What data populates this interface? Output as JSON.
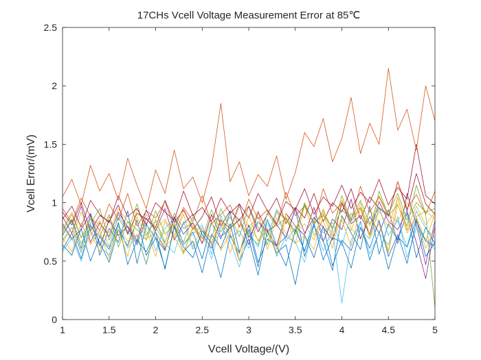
{
  "chart_data": {
    "type": "line",
    "title": "17CHs Vcell Voltage Measurement Error at 85℃",
    "xlabel": "Vcell Voltage/(V)",
    "ylabel": "Vcell Error/(mV)",
    "xlim": [
      1,
      5
    ],
    "ylim": [
      0,
      2.5
    ],
    "xticks": [
      "1",
      "1.5",
      "2",
      "2.5",
      "3",
      "3.5",
      "4",
      "4.5",
      "5"
    ],
    "yticks": [
      "0",
      "0.5",
      "1",
      "1.5",
      "2",
      "2.5"
    ],
    "grid": false,
    "legend": "none",
    "x": [
      1.0,
      1.1,
      1.2,
      1.3,
      1.4,
      1.5,
      1.6,
      1.7,
      1.8,
      1.9,
      2.0,
      2.1,
      2.2,
      2.3,
      2.4,
      2.5,
      2.6,
      2.7,
      2.8,
      2.9,
      3.0,
      3.1,
      3.2,
      3.3,
      3.4,
      3.5,
      3.6,
      3.7,
      3.8,
      3.9,
      4.0,
      4.1,
      4.2,
      4.3,
      4.4,
      4.5,
      4.6,
      4.7,
      4.8,
      4.9,
      5.0
    ],
    "colors": [
      "#0072BD",
      "#D95319",
      "#EDB120",
      "#7E2F8E",
      "#77AC30",
      "#4DBEEE",
      "#A2142F"
    ],
    "series": [
      {
        "values": [
          0.72,
          0.85,
          0.61,
          0.9,
          0.55,
          0.78,
          0.66,
          0.93,
          0.48,
          0.81,
          0.7,
          0.59,
          0.88,
          0.64,
          0.75,
          0.52,
          0.83,
          0.69,
          0.92,
          0.58,
          0.77,
          0.45,
          0.86,
          0.63,
          0.71,
          0.95,
          0.54,
          0.8,
          0.67,
          0.42,
          0.89,
          0.74,
          0.6,
          0.97,
          0.56,
          0.82,
          0.68,
          0.91,
          0.53,
          0.79,
          0.65
        ]
      },
      {
        "values": [
          0.78,
          0.92,
          0.7,
          0.87,
          0.81,
          0.74,
          0.95,
          0.84,
          0.68,
          0.9,
          0.77,
          0.86,
          0.72,
          0.93,
          0.8,
          0.65,
          0.89,
          0.83,
          0.75,
          0.97,
          0.79,
          0.88,
          0.71,
          0.94,
          0.85,
          0.76,
          0.99,
          0.82,
          0.91,
          0.78,
          1.02,
          0.87,
          0.96,
          0.8,
          1.06,
          0.9,
          0.84,
          1.0,
          0.88,
          0.93,
          0.86
        ]
      },
      {
        "values": [
          0.8,
          0.68,
          0.92,
          0.75,
          0.58,
          0.88,
          0.71,
          0.63,
          0.95,
          0.77,
          0.54,
          0.84,
          0.7,
          0.9,
          0.62,
          0.79,
          0.66,
          0.86,
          0.57,
          0.81,
          0.73,
          0.93,
          0.6,
          0.87,
          0.74,
          0.65,
          0.98,
          0.72,
          0.85,
          0.61,
          1.02,
          0.78,
          0.69,
          0.94,
          0.83,
          0.59,
          1.05,
          0.76,
          0.88,
          0.67,
          0.91
        ]
      },
      {
        "values": [
          0.88,
          0.74,
          0.97,
          0.66,
          0.83,
          0.71,
          0.92,
          0.79,
          0.64,
          0.87,
          0.76,
          0.95,
          0.68,
          0.82,
          0.9,
          0.73,
          0.61,
          0.85,
          0.78,
          0.99,
          0.7,
          0.84,
          0.75,
          0.63,
          0.91,
          0.8,
          0.72,
          0.96,
          0.67,
          0.86,
          0.77,
          1.03,
          0.69,
          0.88,
          0.74,
          0.94,
          0.65,
          1.08,
          0.81,
          0.47,
          0.85
        ]
      },
      {
        "values": [
          0.76,
          0.9,
          0.7,
          0.82,
          0.95,
          0.68,
          0.87,
          0.74,
          0.99,
          0.72,
          0.85,
          0.66,
          0.91,
          0.78,
          0.83,
          0.69,
          0.94,
          0.75,
          0.88,
          0.71,
          0.97,
          0.79,
          0.64,
          0.92,
          0.86,
          0.73,
          1.0,
          0.81,
          0.93,
          0.77,
          1.06,
          0.84,
          0.96,
          0.72,
          1.1,
          0.89,
          0.98,
          0.8,
          1.15,
          0.9,
          0.1
        ]
      },
      {
        "values": [
          0.68,
          0.79,
          0.57,
          0.86,
          0.72,
          0.62,
          0.9,
          0.75,
          0.66,
          0.83,
          0.59,
          0.78,
          0.87,
          0.64,
          0.73,
          0.81,
          0.56,
          0.89,
          0.7,
          0.76,
          0.61,
          0.84,
          0.71,
          0.94,
          0.67,
          0.79,
          0.58,
          0.88,
          0.74,
          0.83,
          0.63,
          0.91,
          0.77,
          0.69,
          0.96,
          0.72,
          0.85,
          0.62,
          0.93,
          0.78,
          0.7
        ]
      },
      {
        "values": [
          0.92,
          0.81,
          1.0,
          0.76,
          0.89,
          0.84,
          0.98,
          0.73,
          0.91,
          0.86,
          0.79,
          1.02,
          0.83,
          0.94,
          0.77,
          0.88,
          1.05,
          0.8,
          0.93,
          0.85,
          0.97,
          0.75,
          0.9,
          1.04,
          0.82,
          0.96,
          0.87,
          1.08,
          0.84,
          1.0,
          0.92,
          1.12,
          0.86,
          1.05,
          0.95,
          0.89,
          1.18,
          0.93,
          1.25,
          0.99,
          0.9
        ]
      },
      {
        "values": [
          0.6,
          0.74,
          0.52,
          0.81,
          0.66,
          0.49,
          0.77,
          0.63,
          0.85,
          0.55,
          0.7,
          0.44,
          0.79,
          0.58,
          0.67,
          0.4,
          0.73,
          0.61,
          0.82,
          0.5,
          0.69,
          0.38,
          0.76,
          0.57,
          0.64,
          0.3,
          0.72,
          0.53,
          0.8,
          0.46,
          0.68,
          0.59,
          0.84,
          0.51,
          0.75,
          0.43,
          0.71,
          0.62,
          0.86,
          0.54,
          0.66
        ]
      },
      {
        "values": [
          0.95,
          0.83,
          1.04,
          0.88,
          0.76,
          0.99,
          0.85,
          1.08,
          0.8,
          0.93,
          0.87,
          1.01,
          0.78,
          0.96,
          0.84,
          1.06,
          0.82,
          0.9,
          0.98,
          0.79,
          1.03,
          0.86,
          0.94,
          0.81,
          1.09,
          0.89,
          0.97,
          0.83,
          1.12,
          0.91,
          1.0,
          0.85,
          1.14,
          0.92,
          1.05,
          0.88,
          1.18,
          0.95,
          1.07,
          0.9,
          1.1
        ]
      },
      {
        "values": [
          0.7,
          0.58,
          0.83,
          0.64,
          0.76,
          0.52,
          0.8,
          0.67,
          0.73,
          0.48,
          0.86,
          0.62,
          0.71,
          0.56,
          0.79,
          0.66,
          0.84,
          0.59,
          0.74,
          0.5,
          0.81,
          0.68,
          0.77,
          0.55,
          0.88,
          0.65,
          0.72,
          0.6,
          0.9,
          0.69,
          0.85,
          0.63,
          0.95,
          0.7,
          0.82,
          0.57,
          0.99,
          0.74,
          0.87,
          0.61,
          0.78
        ]
      },
      {
        "values": [
          0.82,
          0.69,
          0.77,
          0.91,
          0.63,
          0.85,
          0.72,
          0.8,
          0.67,
          0.94,
          0.75,
          0.6,
          0.88,
          0.73,
          0.83,
          0.65,
          0.9,
          0.71,
          0.78,
          0.86,
          0.64,
          0.92,
          0.76,
          0.81,
          0.7,
          0.95,
          0.74,
          0.87,
          0.79,
          0.68,
          0.99,
          0.82,
          0.89,
          0.73,
          1.01,
          0.84,
          0.77,
          0.93,
          0.66,
          0.35,
          0.8
        ]
      },
      {
        "values": [
          0.74,
          0.86,
          0.65,
          0.79,
          0.71,
          0.9,
          0.62,
          0.84,
          0.77,
          0.68,
          0.93,
          0.73,
          0.81,
          0.66,
          0.88,
          0.76,
          0.7,
          0.95,
          0.78,
          0.85,
          0.72,
          0.64,
          0.91,
          0.8,
          0.87,
          0.75,
          0.98,
          0.83,
          0.89,
          0.79,
          0.94,
          0.86,
          1.02,
          0.82,
          0.96,
          0.9,
          1.08,
          0.85,
          1.0,
          0.92,
          0.95
        ]
      },
      {
        "values": [
          0.58,
          0.7,
          0.5,
          0.76,
          0.63,
          0.55,
          0.82,
          0.61,
          0.72,
          0.47,
          0.79,
          0.65,
          0.57,
          0.84,
          0.6,
          0.73,
          0.52,
          0.8,
          0.67,
          0.45,
          0.75,
          0.62,
          0.86,
          0.54,
          0.71,
          0.66,
          0.49,
          0.81,
          0.59,
          0.77,
          0.14,
          0.68,
          0.83,
          0.56,
          0.74,
          0.64,
          0.88,
          0.53,
          0.78,
          0.69,
          0.6
        ]
      },
      {
        "values": [
          0.86,
          0.97,
          0.79,
          1.02,
          0.9,
          0.83,
          1.06,
          0.88,
          0.95,
          0.81,
          1.0,
          0.92,
          0.85,
          1.1,
          0.89,
          0.96,
          0.84,
          1.04,
          0.91,
          0.99,
          0.87,
          1.08,
          0.93,
          0.82,
          1.01,
          0.94,
          1.12,
          0.9,
          1.05,
          0.97,
          1.15,
          0.95,
          1.09,
          1.0,
          1.2,
          0.98,
          1.13,
          1.03,
          1.5,
          1.06,
          0.99
        ]
      },
      {
        "values": [
          0.64,
          0.55,
          0.78,
          0.5,
          0.71,
          0.6,
          0.83,
          0.47,
          0.68,
          0.58,
          0.75,
          0.43,
          0.8,
          0.62,
          0.53,
          0.76,
          0.65,
          0.36,
          0.72,
          0.57,
          0.81,
          0.49,
          0.69,
          0.63,
          0.46,
          0.77,
          0.59,
          0.82,
          0.51,
          0.7,
          0.66,
          0.44,
          0.79,
          0.61,
          0.85,
          0.54,
          0.73,
          0.48,
          0.84,
          0.67,
          0.63
        ]
      },
      {
        "values": [
          1.05,
          1.2,
          0.98,
          1.32,
          1.1,
          1.25,
          1.02,
          1.38,
          1.15,
          0.95,
          1.28,
          1.08,
          1.45,
          1.12,
          1.22,
          1.0,
          1.3,
          1.85,
          1.18,
          1.35,
          1.06,
          1.24,
          1.14,
          1.4,
          1.03,
          1.26,
          1.6,
          1.48,
          1.72,
          1.35,
          1.55,
          1.9,
          1.42,
          1.68,
          1.5,
          2.15,
          1.62,
          1.8,
          1.45,
          2.0,
          1.7
        ]
      },
      {
        "values": [
          0.66,
          0.79,
          0.59,
          0.72,
          0.85,
          0.62,
          0.77,
          0.54,
          0.88,
          0.69,
          0.75,
          0.61,
          0.83,
          0.57,
          0.8,
          0.7,
          0.64,
          0.86,
          0.73,
          0.56,
          0.89,
          0.67,
          0.78,
          0.6,
          0.91,
          0.74,
          0.82,
          0.68,
          0.95,
          0.71,
          0.87,
          0.76,
          1.0,
          0.72,
          0.93,
          0.79,
          1.04,
          0.77,
          0.97,
          0.81,
          0.92
        ]
      }
    ],
    "series_colors": [
      "#0072BD",
      "#EDB120",
      "#EDB120",
      "#7E2F8E",
      "#77AC30",
      "#4DBEEE",
      "#A2142F",
      "#0072BD",
      "#D95319",
      "#EDB120",
      "#7E2F8E",
      "#77AC30",
      "#4DBEEE",
      "#A2142F",
      "#0072BD",
      "#D95319",
      "#EDB120"
    ]
  }
}
